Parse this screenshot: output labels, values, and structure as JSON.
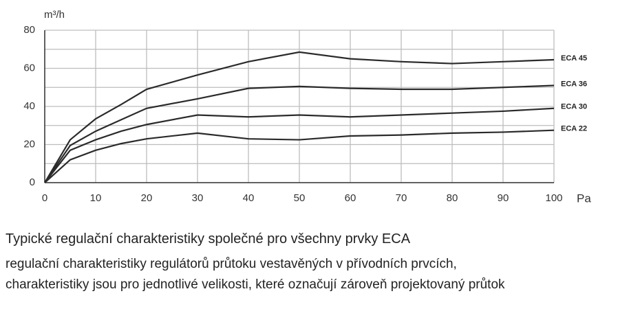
{
  "chart_data": {
    "type": "line",
    "y_label": "m³/h",
    "x_label": "Pa",
    "x": [
      0,
      5,
      10,
      15,
      20,
      30,
      40,
      50,
      60,
      70,
      80,
      90,
      100
    ],
    "series": [
      {
        "name": "ECA 45",
        "color": "#2a2a2a",
        "values": [
          0,
          22.5,
          33.5,
          41,
          49,
          56.5,
          63.5,
          68.5,
          65,
          63.5,
          62.5,
          63.5,
          64.5
        ]
      },
      {
        "name": "ECA 36",
        "color": "#2a2a2a",
        "values": [
          0,
          19.5,
          27,
          33,
          39,
          44,
          49.5,
          50.5,
          49.5,
          49,
          49,
          50,
          51
        ]
      },
      {
        "name": "ECA 30",
        "color": "#2a2a2a",
        "values": [
          0,
          17,
          22.5,
          27,
          30.5,
          35.5,
          34.5,
          35.5,
          34.5,
          35.5,
          36.5,
          37.5,
          39
        ]
      },
      {
        "name": "ECA 22",
        "color": "#2a2a2a",
        "values": [
          0,
          12,
          17,
          20.5,
          23,
          26,
          23,
          22.5,
          24.5,
          25,
          26,
          26.5,
          27.5
        ]
      }
    ],
    "xlim": [
      0,
      100
    ],
    "xticks": [
      0,
      10,
      20,
      30,
      40,
      50,
      60,
      70,
      80,
      90,
      100
    ],
    "ylim": [
      0,
      80
    ],
    "yticks": [
      0,
      20,
      40,
      60,
      80
    ],
    "ygrid": [
      0,
      10,
      20,
      30,
      40,
      50,
      60,
      70,
      80
    ],
    "grid": true
  },
  "caption": {
    "title": "Typické regulační charakteristiky společné pro všechny prvky ECA",
    "lines": [
      "regulační charakteristiky regulátorů průtoku vestavěných v přívodních prvcích,",
      "charakteristiky jsou pro jednotlivé velikosti, které označují zároveň projektovaný průtok"
    ]
  }
}
